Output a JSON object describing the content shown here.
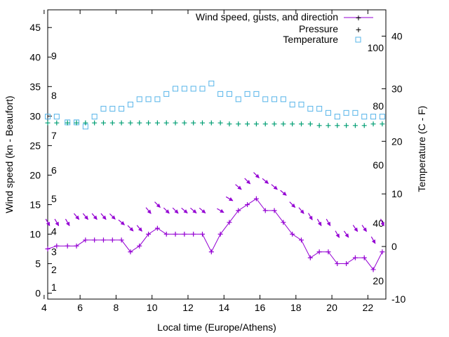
{
  "chart_data": {
    "type": "line",
    "title": "",
    "xlabel": "Local time (Europe/Athens)",
    "ylabel_left": "Wind speed (kn - Beaufort)",
    "ylabel_right": "Temperature (C - F)",
    "xlim": [
      4.2,
      23.0
    ],
    "ylim_left": [
      -1,
      48
    ],
    "ylim_right": [
      -10,
      45
    ],
    "x_ticks": [
      4,
      6,
      8,
      10,
      12,
      14,
      16,
      18,
      20,
      22
    ],
    "y_ticks_left": [
      0,
      5,
      10,
      15,
      20,
      25,
      30,
      35,
      40,
      45
    ],
    "y_ticks_right": [
      -10,
      0,
      10,
      20,
      30,
      40
    ],
    "beaufort_labels": [
      {
        "label": "1",
        "y": 1.0
      },
      {
        "label": "2",
        "y": 4.0
      },
      {
        "label": "3",
        "y": 7.0
      },
      {
        "label": "4",
        "y": 10.5
      },
      {
        "label": "5",
        "y": 16.0
      },
      {
        "label": "6",
        "y": 20.8
      },
      {
        "label": "7",
        "y": 26.7
      },
      {
        "label": "8",
        "y": 33.5
      },
      {
        "label": "9",
        "y": 40.2
      }
    ],
    "fahrenheit_labels": [
      {
        "label": "20",
        "y_celsius": -6.5
      },
      {
        "label": "40",
        "y_celsius": 4.4
      },
      {
        "label": "60",
        "y_celsius": 15.5
      },
      {
        "label": "80",
        "y_celsius": 26.7
      },
      {
        "label": "100",
        "y_celsius": 37.8
      }
    ],
    "legend_position": "top-right",
    "legend": [
      "Wind speed, gusts, and direction",
      "Pressure",
      "Temperature"
    ],
    "colors": {
      "wind": "#9400d3",
      "pressure": "#009e73",
      "temperature": "#56b4e9"
    },
    "series": [
      {
        "name": "Wind speed, gusts, and direction",
        "axis": "left",
        "x": [
          4.2,
          4.7,
          5.3,
          5.8,
          6.3,
          6.8,
          7.3,
          7.8,
          8.3,
          8.8,
          9.3,
          9.8,
          10.3,
          10.8,
          11.3,
          11.8,
          12.3,
          12.8,
          13.3,
          13.8,
          14.3,
          14.8,
          15.3,
          15.8,
          16.3,
          16.8,
          17.3,
          17.8,
          18.3,
          18.8,
          19.3,
          19.8,
          20.3,
          20.8,
          21.3,
          21.8,
          22.3,
          22.8
        ],
        "y": [
          7.5,
          8,
          8,
          8,
          9,
          9,
          9,
          9,
          9,
          7,
          8,
          10,
          11,
          10,
          10,
          10,
          10,
          10,
          7,
          10,
          12,
          14,
          15,
          16,
          14,
          14,
          12,
          10,
          9,
          6,
          7,
          7,
          5,
          5,
          6,
          6,
          4,
          7
        ],
        "gusts": [
          12,
          12,
          12,
          13,
          13,
          13,
          13,
          13,
          12,
          11,
          11,
          14,
          15,
          14,
          14,
          14,
          14,
          14,
          null,
          14,
          16,
          18,
          19,
          20,
          19,
          18,
          17,
          15,
          14,
          13,
          12,
          12,
          10,
          10,
          11,
          11,
          9,
          12
        ],
        "gust_direction_deg": [
          330,
          330,
          330,
          320,
          320,
          320,
          320,
          315,
          310,
          315,
          320,
          320,
          315,
          315,
          315,
          310,
          310,
          310,
          null,
          300,
          300,
          310,
          315,
          315,
          310,
          310,
          310,
          315,
          320,
          330,
          330,
          330,
          330,
          325,
          325,
          325,
          330,
          335
        ]
      },
      {
        "name": "Pressure",
        "axis": "right",
        "x": [
          4.2,
          4.7,
          5.3,
          5.8,
          6.3,
          6.8,
          7.3,
          7.8,
          8.3,
          8.8,
          9.3,
          9.8,
          10.3,
          10.8,
          11.3,
          11.8,
          12.3,
          12.8,
          13.3,
          13.8,
          14.3,
          14.8,
          15.3,
          15.8,
          16.3,
          16.8,
          17.3,
          17.8,
          18.3,
          18.8,
          19.3,
          19.8,
          20.3,
          20.8,
          21.3,
          21.8,
          22.3,
          22.8
        ],
        "y": [
          23.5,
          23.5,
          23.5,
          23.5,
          23.5,
          23.5,
          23.5,
          23.5,
          23.5,
          23.5,
          23.5,
          23.5,
          23.5,
          23.5,
          23.5,
          23.5,
          23.5,
          23.5,
          23.5,
          23.5,
          23.3,
          23.3,
          23.3,
          23.3,
          23.3,
          23.3,
          23.3,
          23.3,
          23.3,
          23.3,
          23.0,
          23.0,
          23.0,
          23.0,
          23.0,
          23.0,
          23.3,
          23.3
        ]
      },
      {
        "name": "Temperature",
        "axis": "right",
        "x": [
          4.2,
          4.7,
          5.3,
          5.8,
          6.3,
          6.8,
          7.3,
          7.8,
          8.3,
          8.8,
          9.3,
          9.8,
          10.3,
          10.8,
          11.3,
          11.8,
          12.3,
          12.8,
          13.3,
          13.8,
          14.3,
          14.8,
          15.3,
          15.8,
          16.3,
          16.8,
          17.3,
          17.8,
          18.3,
          18.8,
          19.3,
          19.8,
          20.3,
          20.8,
          21.3,
          21.8,
          22.3,
          22.8
        ],
        "y": [
          24.7,
          24.7,
          23.6,
          23.6,
          22.8,
          24.7,
          26.2,
          26.2,
          26.2,
          27.0,
          28.0,
          28.0,
          28.0,
          29.0,
          30.0,
          30.0,
          30.0,
          30.0,
          31.0,
          29.0,
          29.0,
          28.0,
          29.0,
          29.0,
          28.0,
          28.0,
          28.0,
          27.0,
          27.0,
          26.2,
          26.2,
          25.4,
          24.7,
          25.4,
          25.4,
          24.7,
          24.7,
          24.7
        ]
      }
    ]
  }
}
